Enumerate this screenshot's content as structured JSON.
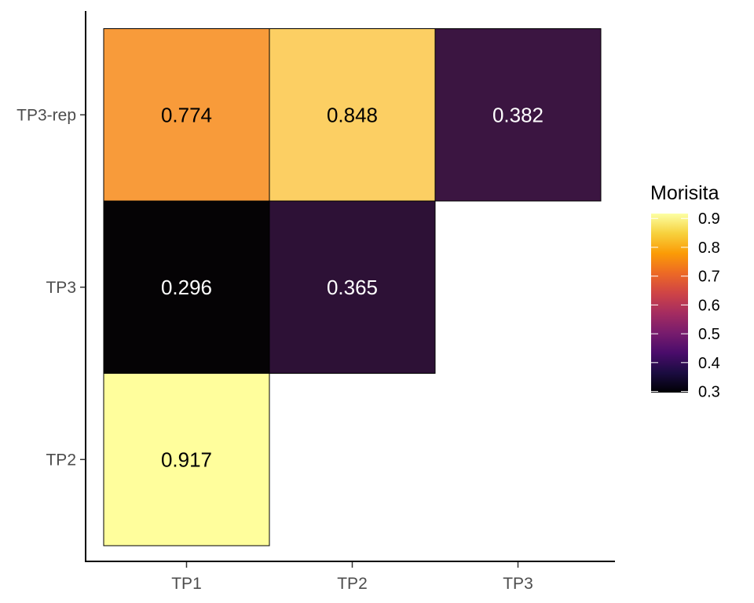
{
  "chart_data": {
    "type": "heatmap",
    "x_categories": [
      "TP1",
      "TP2",
      "TP3"
    ],
    "y_categories": [
      "TP2",
      "TP3",
      "TP3-rep"
    ],
    "cells": [
      {
        "x": "TP1",
        "y": "TP3-rep",
        "value": 0.774,
        "label": "0.774",
        "fill": "#F89B3A",
        "text_color": "#000000"
      },
      {
        "x": "TP2",
        "y": "TP3-rep",
        "value": 0.848,
        "label": "0.848",
        "fill": "#FCCF63",
        "text_color": "#000000"
      },
      {
        "x": "TP3",
        "y": "TP3-rep",
        "value": 0.382,
        "label": "0.382",
        "fill": "#3B1541",
        "text_color": "#ffffff"
      },
      {
        "x": "TP1",
        "y": "TP3",
        "value": 0.296,
        "label": "0.296",
        "fill": "#050305",
        "text_color": "#ffffff"
      },
      {
        "x": "TP2",
        "y": "TP3",
        "value": 0.365,
        "label": "0.365",
        "fill": "#2D1136",
        "text_color": "#ffffff"
      },
      {
        "x": "TP1",
        "y": "TP2",
        "value": 0.917,
        "label": "0.917",
        "fill": "#FFFE9C",
        "text_color": "#000000"
      }
    ],
    "legend": {
      "title": "Morisita",
      "placement": "right",
      "range": [
        0.296,
        0.917
      ],
      "breaks": [
        0.3,
        0.4,
        0.5,
        0.6,
        0.7,
        0.8,
        0.9
      ],
      "break_labels": [
        "0.3",
        "0.4",
        "0.5",
        "0.6",
        "0.7",
        "0.8",
        "0.9"
      ],
      "colormap": [
        "#000004",
        "#1B0C41",
        "#4A0C6B",
        "#781C6D",
        "#A52C60",
        "#CF4446",
        "#ED6925",
        "#FB9B06",
        "#F7D13D",
        "#FCFFA4"
      ]
    },
    "grid": false
  }
}
